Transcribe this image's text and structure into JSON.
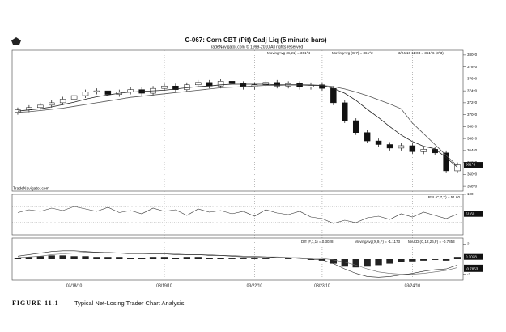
{
  "chart_data": [
    {
      "type": "candlestick",
      "title": "C-067: Corn CBT (Pit) Cadj Liq (5 minute bars)",
      "subtitle": "TradeNavigator.com © 1999-2010 All rights reserved",
      "watermark": "TradeNavigator.com",
      "bar_label": "3/24/10 11:04 = 361^6 (3^3)",
      "last_label": "361^6",
      "categories": [
        null,
        null,
        null,
        null,
        null,
        "03/18/10",
        null,
        null,
        null,
        null,
        null,
        null,
        null,
        "03/19/10",
        null,
        null,
        null,
        null,
        null,
        null,
        null,
        "03/22/10",
        null,
        null,
        null,
        null,
        null,
        "03/23/10",
        null,
        null,
        null,
        null,
        null,
        null,
        null,
        "03/24/10",
        null,
        null,
        null,
        null
      ],
      "open": [
        370.4,
        370.8,
        371.2,
        371.6,
        372.0,
        372.6,
        373.2,
        373.8,
        374.0,
        373.4,
        373.8,
        374.2,
        373.6,
        374.4,
        374.8,
        374.2,
        375.0,
        375.4,
        374.8,
        375.6,
        375.2,
        374.6,
        375.0,
        375.4,
        374.8,
        375.2,
        374.6,
        375.0,
        374.4,
        372.0,
        369.0,
        367.0,
        365.6,
        365.0,
        364.4,
        364.8,
        363.8,
        364.2,
        363.6,
        360.6
      ],
      "high": [
        371.2,
        371.6,
        372.0,
        372.4,
        373.0,
        373.6,
        374.2,
        374.4,
        374.4,
        374.2,
        374.6,
        374.6,
        374.8,
        375.2,
        375.2,
        375.4,
        375.8,
        375.8,
        376.0,
        376.0,
        375.6,
        375.4,
        375.8,
        375.8,
        375.6,
        375.6,
        375.4,
        375.4,
        374.8,
        372.4,
        369.4,
        367.4,
        366.0,
        365.4,
        365.2,
        365.2,
        364.6,
        364.6,
        364.0,
        362.0
      ],
      "low": [
        370.0,
        370.4,
        370.8,
        371.2,
        371.6,
        372.2,
        372.8,
        373.4,
        373.0,
        373.0,
        373.4,
        373.2,
        373.2,
        374.0,
        373.8,
        373.8,
        374.6,
        374.4,
        374.4,
        374.8,
        374.2,
        374.2,
        374.6,
        374.4,
        374.4,
        374.2,
        374.2,
        374.0,
        371.6,
        368.6,
        366.6,
        365.2,
        364.6,
        364.0,
        364.0,
        363.4,
        363.4,
        363.2,
        360.2,
        360.2
      ],
      "close": [
        370.8,
        371.2,
        371.6,
        372.0,
        372.6,
        373.2,
        373.8,
        374.0,
        373.4,
        373.8,
        374.2,
        373.6,
        374.4,
        374.8,
        374.2,
        375.0,
        375.4,
        374.8,
        375.6,
        375.2,
        374.6,
        375.0,
        375.4,
        374.8,
        375.2,
        374.6,
        375.0,
        374.4,
        372.0,
        369.0,
        367.0,
        365.6,
        365.0,
        364.4,
        364.8,
        363.8,
        364.2,
        363.6,
        360.6,
        361.6
      ],
      "series": [
        {
          "name": "MovingAvg (C,21) = 361^4",
          "color": "#555555",
          "values": [
            370.4,
            370.5,
            370.7,
            370.9,
            371.1,
            371.4,
            371.7,
            372.0,
            372.3,
            372.6,
            372.9,
            373.1,
            373.3,
            373.5,
            373.7,
            373.9,
            374.1,
            374.3,
            374.5,
            374.6,
            374.7,
            374.8,
            374.9,
            374.9,
            375.0,
            375.0,
            375.0,
            374.9,
            374.7,
            374.3,
            373.8,
            373.2,
            372.5,
            371.8,
            371.0,
            368.6,
            366.8,
            365.0,
            363.2,
            361.4
          ]
        },
        {
          "name": "MovingAvg (C,7) = 361^2",
          "color": "#222222",
          "values": [
            370.6,
            370.8,
            371.0,
            371.3,
            371.7,
            372.1,
            372.6,
            373.0,
            373.3,
            373.6,
            373.8,
            373.9,
            374.0,
            374.1,
            374.3,
            374.5,
            374.7,
            374.8,
            375.0,
            375.1,
            375.1,
            375.1,
            375.1,
            375.0,
            375.0,
            375.0,
            374.9,
            374.9,
            374.4,
            373.6,
            372.4,
            370.9,
            369.5,
            368.0,
            366.6,
            365.5,
            364.7,
            364.3,
            362.8,
            361.2
          ]
        }
      ],
      "ylim": [
        357.2,
        380.8
      ],
      "yticks": [
        {
          "value": 380,
          "label": "380^0"
        },
        {
          "value": 378,
          "label": "378^0"
        },
        {
          "value": 376,
          "label": "376^0"
        },
        {
          "value": 374,
          "label": "374^0"
        },
        {
          "value": 372,
          "label": "372^0"
        },
        {
          "value": 370,
          "label": "370^0"
        },
        {
          "value": 368,
          "label": "368^0"
        },
        {
          "value": 366,
          "label": "366^0"
        },
        {
          "value": 364,
          "label": "364^0"
        },
        {
          "value": 362,
          "label": "362^0"
        },
        {
          "value": 360,
          "label": "360^0"
        },
        {
          "value": 358,
          "label": "358^0"
        }
      ]
    },
    {
      "type": "line",
      "series": [
        {
          "name": "RSI (C,7,T) = 51.60",
          "color": "#333333",
          "last_label": "51.60",
          "values": [
            55,
            62,
            58,
            66,
            60,
            70,
            64,
            58,
            68,
            55,
            60,
            52,
            66,
            58,
            62,
            48,
            64,
            56,
            60,
            52,
            58,
            46,
            62,
            54,
            50,
            58,
            44,
            40,
            28,
            36,
            30,
            42,
            46,
            38,
            52,
            44,
            56,
            48,
            40,
            51.6
          ]
        }
      ],
      "levels": [
        70,
        30
      ],
      "ylim": [
        0,
        100
      ],
      "yticks": [
        100
      ]
    },
    {
      "type": "macd",
      "series": [
        {
          "name": "Diff (F,1,1) = 0.3028",
          "color": "#222222",
          "last_label": "0.3028",
          "values": [
            0.2,
            0.3,
            0.4,
            0.5,
            0.5,
            0.4,
            0.4,
            0.3,
            0.3,
            0.3,
            0.2,
            0.2,
            0.3,
            0.3,
            0.2,
            0.3,
            0.3,
            0.2,
            0.2,
            0.1,
            0.1,
            0.1,
            0.1,
            0.0,
            0.1,
            0.0,
            -0.1,
            -0.2,
            -0.6,
            -1.0,
            -1.1,
            -1.0,
            -0.8,
            -0.6,
            -0.4,
            -0.3,
            -0.2,
            -0.1,
            -0.2,
            0.3028
          ]
        },
        {
          "name": "MovingAvg(X,9,F) = -1.1173",
          "color": "#666666",
          "last_label": "-1.1173",
          "values": [
            0.2,
            0.3,
            0.4,
            0.6,
            0.7,
            0.8,
            0.9,
            0.9,
            0.9,
            0.8,
            0.8,
            0.8,
            0.7,
            0.7,
            0.7,
            0.6,
            0.6,
            0.6,
            0.5,
            0.5,
            0.4,
            0.4,
            0.3,
            0.3,
            0.2,
            0.2,
            0.1,
            0.1,
            -0.1,
            -0.4,
            -0.8,
            -1.3,
            -1.7,
            -1.9,
            -2.0,
            -2.0,
            -1.9,
            -1.7,
            -1.5,
            -1.1173
          ]
        },
        {
          "name": "MACD (C,12,26,F) = -0.7853",
          "color": "#222222",
          "last_label": "-0.7853",
          "values": [
            0.4,
            0.6,
            0.8,
            1.0,
            1.1,
            1.1,
            1.0,
            0.9,
            0.8,
            0.8,
            0.7,
            0.7,
            0.7,
            0.7,
            0.6,
            0.6,
            0.6,
            0.5,
            0.5,
            0.4,
            0.3,
            0.3,
            0.3,
            0.2,
            0.2,
            0.1,
            0.0,
            -0.1,
            -0.6,
            -1.3,
            -1.9,
            -2.3,
            -2.4,
            -2.3,
            -2.1,
            -1.9,
            -1.6,
            -1.4,
            -1.3,
            -0.7853
          ]
        }
      ],
      "ylim": [
        -2.8,
        2.8
      ],
      "yticks": [
        2,
        -2
      ]
    }
  ],
  "figure_caption": {
    "label": "FIGURE 11.1",
    "text": "Typical Net-Losing Trader Chart Analysis"
  }
}
